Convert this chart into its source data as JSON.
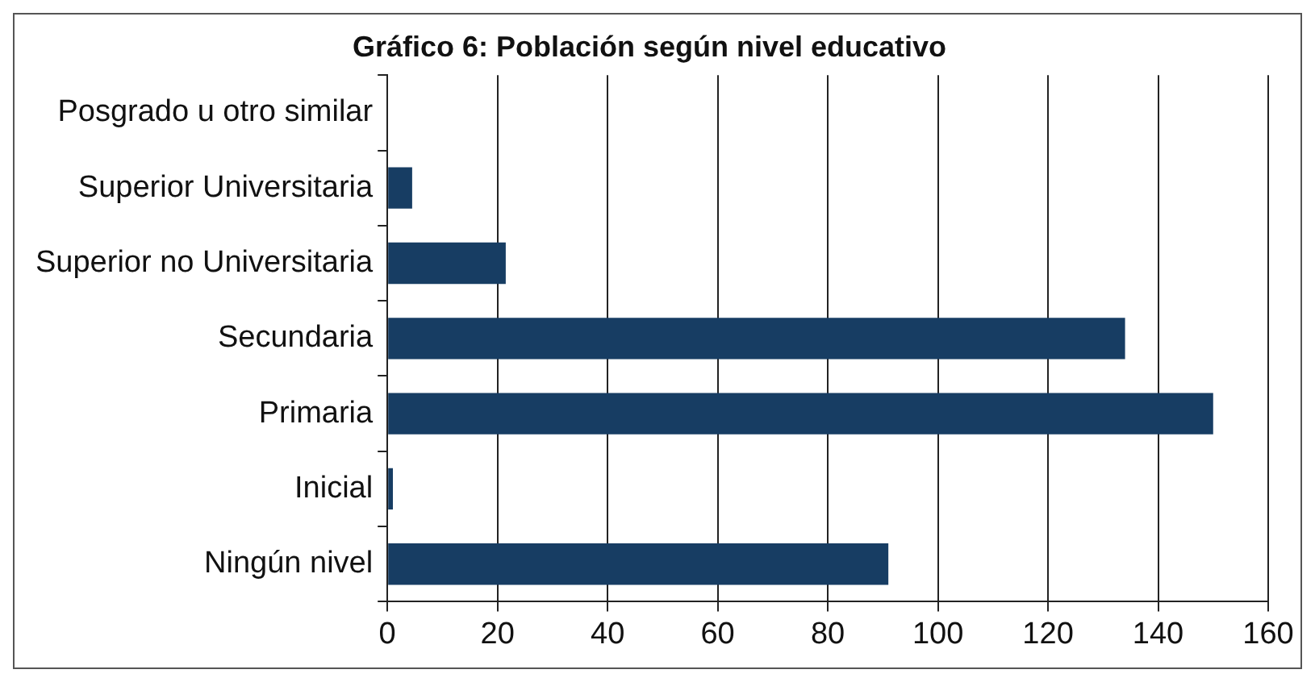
{
  "chart_data": {
    "type": "bar",
    "orientation": "horizontal",
    "title": "Gráfico 6: Población según nivel educativo",
    "categories": [
      "Posgrado u otro similar",
      "Superior Universitaria",
      "Superior no Universitaria",
      "Secundaria",
      "Primaria",
      "Inicial",
      "Ningún nivel"
    ],
    "values": [
      0,
      4.5,
      21.5,
      134,
      150,
      1,
      91
    ],
    "color": "#173d63",
    "xlim": [
      0,
      160
    ],
    "xticks": [
      0,
      20,
      40,
      60,
      80,
      100,
      120,
      140,
      160
    ],
    "grid": "x",
    "legend": false
  }
}
